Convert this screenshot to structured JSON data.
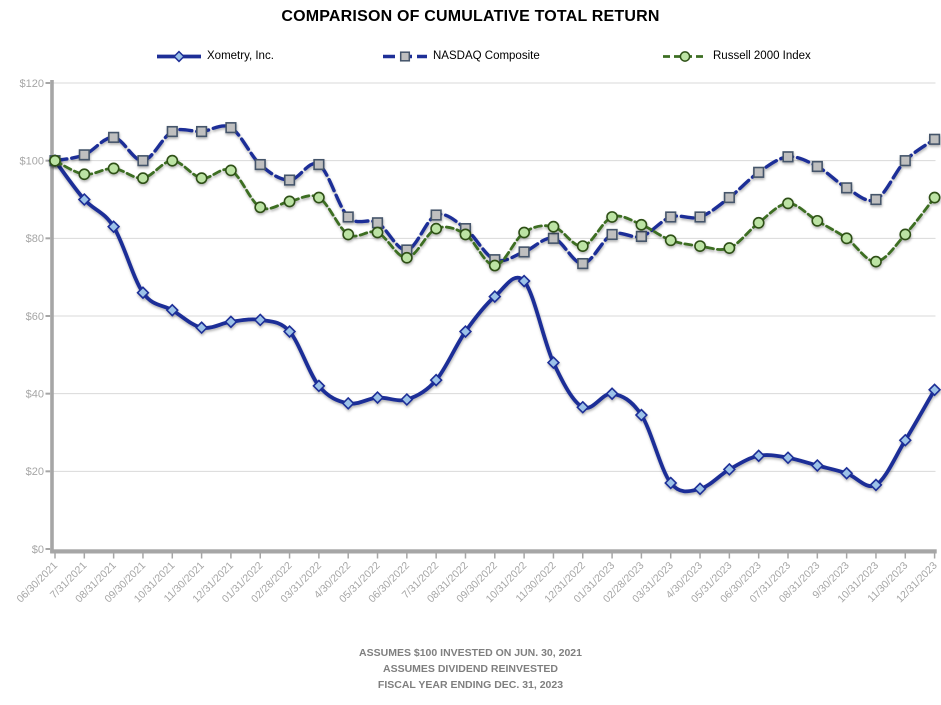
{
  "title": "COMPARISON OF CUMULATIVE TOTAL RETURN",
  "footnotes": [
    "ASSUMES $100 INVESTED ON JUN. 30, 2021",
    "ASSUMES DIVIDEND REINVESTED",
    "FISCAL YEAR ENDING DEC. 31, 2023"
  ],
  "colors": {
    "navy_line": "#1E2F97",
    "green_line": "#3C6E22",
    "diamond_fill": "#9CC2E8",
    "square_fill": "#BFBFBF",
    "square_border": "#44546A",
    "circle_fill": "#BCE3A4",
    "circle_border": "#2D5016",
    "grid": "#D9D9D9",
    "axis": "#A6A6A6",
    "axis_text": "#A6A6A6",
    "footnote_text": "#7F7F7F"
  },
  "chart_data": {
    "type": "line",
    "title": "COMPARISON OF CUMULATIVE TOTAL RETURN",
    "xlabel": "",
    "ylabel": "",
    "ylim": [
      0,
      120
    ],
    "y_ticks": [
      "$0",
      "$20",
      "$40",
      "$60",
      "$80",
      "$100",
      "$120"
    ],
    "y_tick_values": [
      0,
      20,
      40,
      60,
      80,
      100,
      120
    ],
    "grid": true,
    "legend_position": "top",
    "x": [
      "06/30/2021",
      "7/31/2021",
      "08/31/2021",
      "09/30/2021",
      "10/31/2021",
      "11/30/2021",
      "12/31/2021",
      "01/31/2022",
      "02/28/2022",
      "03/31/2022",
      "4/30/2022",
      "05/31/2022",
      "06/30/2022",
      "7/31/2022",
      "08/31/2022",
      "09/30/2022",
      "10/31/2022",
      "11/30/2022",
      "12/31/2022",
      "01/31/2023",
      "02/28/2023",
      "03/31/2023",
      "4/30/2023",
      "05/31/2023",
      "06/30/2023",
      "07/31/2023",
      "08/31/2023",
      "9/30/2023",
      "10/31/2023",
      "11/30/2023",
      "12/31/2023"
    ],
    "series": [
      {
        "name": "Xometry, Inc.",
        "marker": "diamond",
        "line_style": "solid",
        "values": [
          100,
          90,
          83,
          66,
          61.5,
          57,
          58.5,
          59,
          56,
          42,
          37.5,
          39,
          38.5,
          43.5,
          56,
          65,
          69,
          48,
          36.5,
          40,
          34.5,
          17,
          15.5,
          20.5,
          24,
          23.5,
          21.5,
          19.5,
          16.5,
          28,
          41
        ]
      },
      {
        "name": "NASDAQ Composite",
        "marker": "square",
        "line_style": "dashed",
        "values": [
          100,
          101.5,
          106,
          100,
          107.5,
          107.5,
          108.5,
          99,
          95,
          99,
          85.5,
          84,
          77,
          86,
          82.5,
          74.5,
          76.5,
          80,
          73.5,
          81,
          80.5,
          85.5,
          85.5,
          90.5,
          97,
          101,
          98.5,
          93,
          90,
          100,
          105.5
        ]
      },
      {
        "name": "Russell 2000 Index",
        "marker": "circle",
        "line_style": "dashed",
        "values": [
          100,
          96.5,
          98,
          95.5,
          100,
          95.5,
          97.5,
          88,
          89.5,
          90.5,
          81,
          81.5,
          75,
          82.5,
          81,
          73,
          81.5,
          83,
          78,
          85.5,
          83.5,
          79.5,
          78,
          77.5,
          84,
          89,
          84.5,
          80,
          74,
          81,
          90.5
        ]
      }
    ]
  }
}
